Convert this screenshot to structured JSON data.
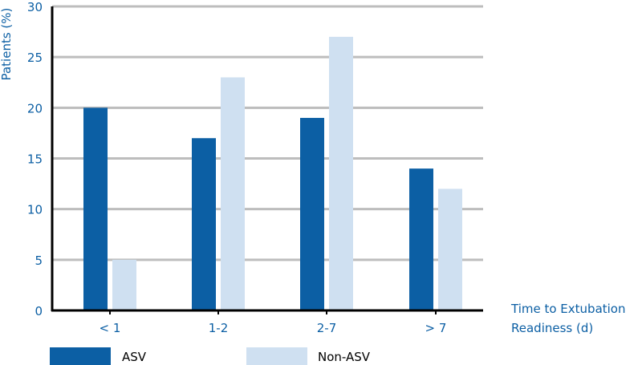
{
  "chart_data": {
    "type": "bar",
    "categories": [
      "< 1",
      "1-2",
      "2-7",
      "> 7"
    ],
    "series": [
      {
        "name": "ASV",
        "values": [
          20,
          17,
          19,
          14
        ],
        "color": "#0c5fa4"
      },
      {
        "name": "Non-ASV",
        "values": [
          5,
          23,
          27,
          12
        ],
        "color": "#cfe0f1"
      }
    ],
    "ylabel": "Patients (%)",
    "xlabel": [
      "Time to Extubation",
      "Readiness (d)"
    ],
    "ylim": [
      0,
      30
    ],
    "yticks": [
      0,
      5,
      10,
      15,
      20,
      25,
      30
    ],
    "grid": true,
    "legend_position": "bottom-left",
    "colors": {
      "text": "#0c5fa4",
      "axis": "#000000",
      "grid": "#bdbdbd"
    }
  }
}
